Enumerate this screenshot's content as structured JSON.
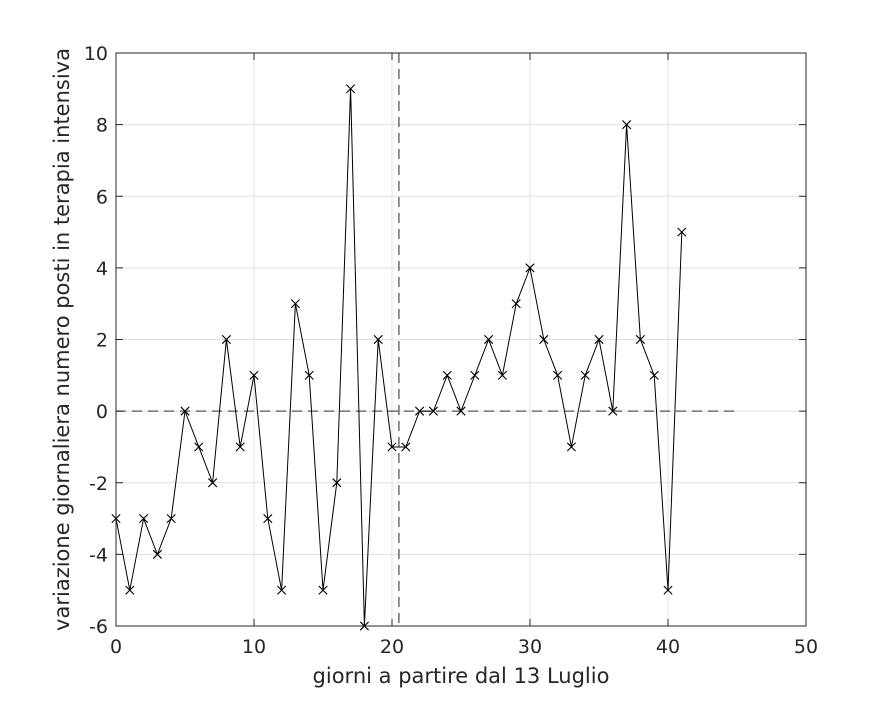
{
  "chart_data": {
    "type": "line",
    "title": "",
    "xlabel": "giorni a partire dal 13 Luglio",
    "ylabel": "variazione giornaliera numero posti in terapia intensiva",
    "xlim": [
      0,
      50
    ],
    "ylim": [
      -6,
      10
    ],
    "xticks": [
      0,
      10,
      20,
      30,
      40,
      50
    ],
    "yticks": [
      -6,
      -4,
      -2,
      0,
      2,
      4,
      6,
      8,
      10
    ],
    "grid": true,
    "legend": "none",
    "series": [
      {
        "marker": "x",
        "color": "#000000",
        "x": [
          0,
          1,
          2,
          3,
          4,
          5,
          6,
          7,
          8,
          9,
          10,
          11,
          12,
          13,
          14,
          15,
          16,
          17,
          18,
          19,
          20,
          21,
          22,
          23,
          24,
          25,
          26,
          27,
          28,
          29,
          30,
          31,
          32,
          33,
          34,
          35,
          36,
          37,
          38,
          39,
          40,
          41
        ],
        "y": [
          -3,
          -5,
          -3,
          -4,
          -3,
          0,
          -1,
          -2,
          2,
          -1,
          1,
          -3,
          -5,
          3,
          1,
          -5,
          -2,
          9,
          -6,
          2,
          -1,
          -1,
          0,
          0,
          1,
          0,
          1,
          2,
          1,
          3,
          4,
          2,
          1,
          -1,
          1,
          2,
          0,
          8,
          2,
          1,
          -5,
          5
        ]
      }
    ],
    "reference_lines": [
      {
        "orientation": "horizontal",
        "value": 0,
        "from": 0,
        "to": 45,
        "style": "dashed",
        "color": "#555555"
      },
      {
        "orientation": "vertical",
        "value": 20.5,
        "style": "dashed",
        "color": "#555555"
      }
    ]
  }
}
